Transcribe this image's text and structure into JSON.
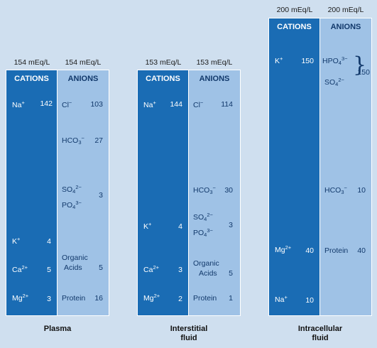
{
  "plasma": {
    "cations_total": "154 mEq/L",
    "anions_total": "154 mEq/L",
    "cations_header": "CATIONS",
    "anions_header": "ANIONS",
    "na_val": "142",
    "k_val": "4",
    "ca_val": "5",
    "mg_val": "3",
    "cl_val": "103",
    "hco3_val": "27",
    "so4_po4_val": "3",
    "organic_acids_label_1": "Organic",
    "organic_acids_label_2": "Acids",
    "organic_acids_val": "5",
    "protein_label": "Protein",
    "protein_val": "16",
    "footer": "Plasma"
  },
  "interstitial": {
    "cations_total": "153 mEq/L",
    "anions_total": "153 mEq/L",
    "cations_header": "CATIONS",
    "anions_header": "ANIONS",
    "na_val": "144",
    "k_val": "4",
    "ca_val": "3",
    "mg_val": "2",
    "cl_val": "114",
    "hco3_val": "30",
    "so4_po4_val": "3",
    "organic_acids_label_1": "Organic",
    "organic_acids_label_2": "Acids",
    "organic_acids_val": "5",
    "protein_label": "Protein",
    "protein_val": "1",
    "footer_1": "Interstitial",
    "footer_2": "fluid"
  },
  "intracellular": {
    "cations_total": "200 mEq/L",
    "anions_total": "200 mEq/L",
    "cations_header": "CATIONS",
    "anions_header": "ANIONS",
    "k_val": "150",
    "mg_val": "40",
    "na_val": "10",
    "hpo4_so4_val": "150",
    "hco3_val": "10",
    "protein_label": "Protein",
    "protein_val": "40",
    "footer_1": "Intracellular",
    "footer_2": "fluid"
  }
}
